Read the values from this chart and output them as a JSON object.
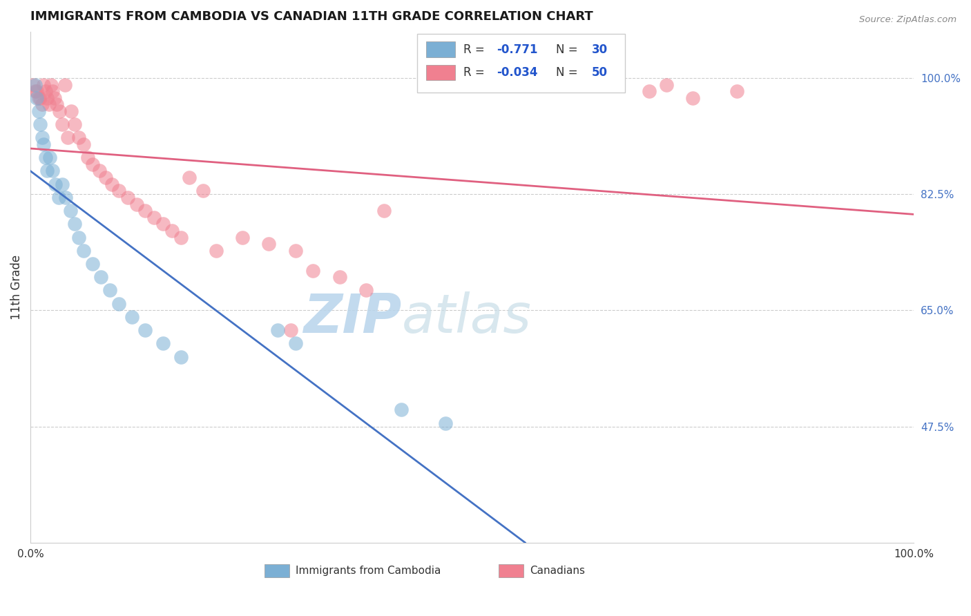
{
  "title": "IMMIGRANTS FROM CAMBODIA VS CANADIAN 11TH GRADE CORRELATION CHART",
  "source_text": "Source: ZipAtlas.com",
  "ylabel": "11th Grade",
  "y_ticks": [
    0.475,
    0.65,
    0.825,
    1.0
  ],
  "y_tick_labels": [
    "47.5%",
    "65.0%",
    "82.5%",
    "100.0%"
  ],
  "blue_color": "#7bafd4",
  "pink_color": "#f08090",
  "blue_line_color": "#4472c4",
  "pink_line_color": "#e06080",
  "watermark_zip": "ZIP",
  "watermark_atlas": "atlas",
  "watermark_color_zip": "#c8dff0",
  "watermark_color_atlas": "#b8cce4",
  "background_color": "#ffffff",
  "grid_color": "#cccccc",
  "blue_x": [
    0.005,
    0.007,
    0.009,
    0.011,
    0.013,
    0.015,
    0.017,
    0.019,
    0.022,
    0.025,
    0.028,
    0.032,
    0.036,
    0.04,
    0.045,
    0.05,
    0.055,
    0.06,
    0.07,
    0.08,
    0.09,
    0.1,
    0.115,
    0.13,
    0.15,
    0.17,
    0.28,
    0.3,
    0.42,
    0.47
  ],
  "blue_y": [
    0.99,
    0.97,
    0.95,
    0.93,
    0.91,
    0.9,
    0.88,
    0.86,
    0.88,
    0.86,
    0.84,
    0.82,
    0.84,
    0.82,
    0.8,
    0.78,
    0.76,
    0.74,
    0.72,
    0.7,
    0.68,
    0.66,
    0.64,
    0.62,
    0.6,
    0.58,
    0.62,
    0.6,
    0.5,
    0.48
  ],
  "pink_x": [
    0.003,
    0.005,
    0.007,
    0.009,
    0.011,
    0.013,
    0.015,
    0.017,
    0.019,
    0.021,
    0.023,
    0.025,
    0.027,
    0.03,
    0.033,
    0.036,
    0.039,
    0.042,
    0.046,
    0.05,
    0.055,
    0.06,
    0.065,
    0.07,
    0.078,
    0.085,
    0.092,
    0.1,
    0.11,
    0.12,
    0.13,
    0.14,
    0.15,
    0.16,
    0.17,
    0.18,
    0.195,
    0.21,
    0.24,
    0.27,
    0.3,
    0.32,
    0.35,
    0.38,
    0.7,
    0.72,
    0.75,
    0.8,
    0.295,
    0.4
  ],
  "pink_y": [
    0.99,
    0.98,
    0.98,
    0.97,
    0.97,
    0.96,
    0.99,
    0.98,
    0.97,
    0.96,
    0.99,
    0.98,
    0.97,
    0.96,
    0.95,
    0.93,
    0.99,
    0.91,
    0.95,
    0.93,
    0.91,
    0.9,
    0.88,
    0.87,
    0.86,
    0.85,
    0.84,
    0.83,
    0.82,
    0.81,
    0.8,
    0.79,
    0.78,
    0.77,
    0.76,
    0.85,
    0.83,
    0.74,
    0.76,
    0.75,
    0.74,
    0.71,
    0.7,
    0.68,
    0.98,
    0.99,
    0.97,
    0.98,
    0.62,
    0.8
  ]
}
